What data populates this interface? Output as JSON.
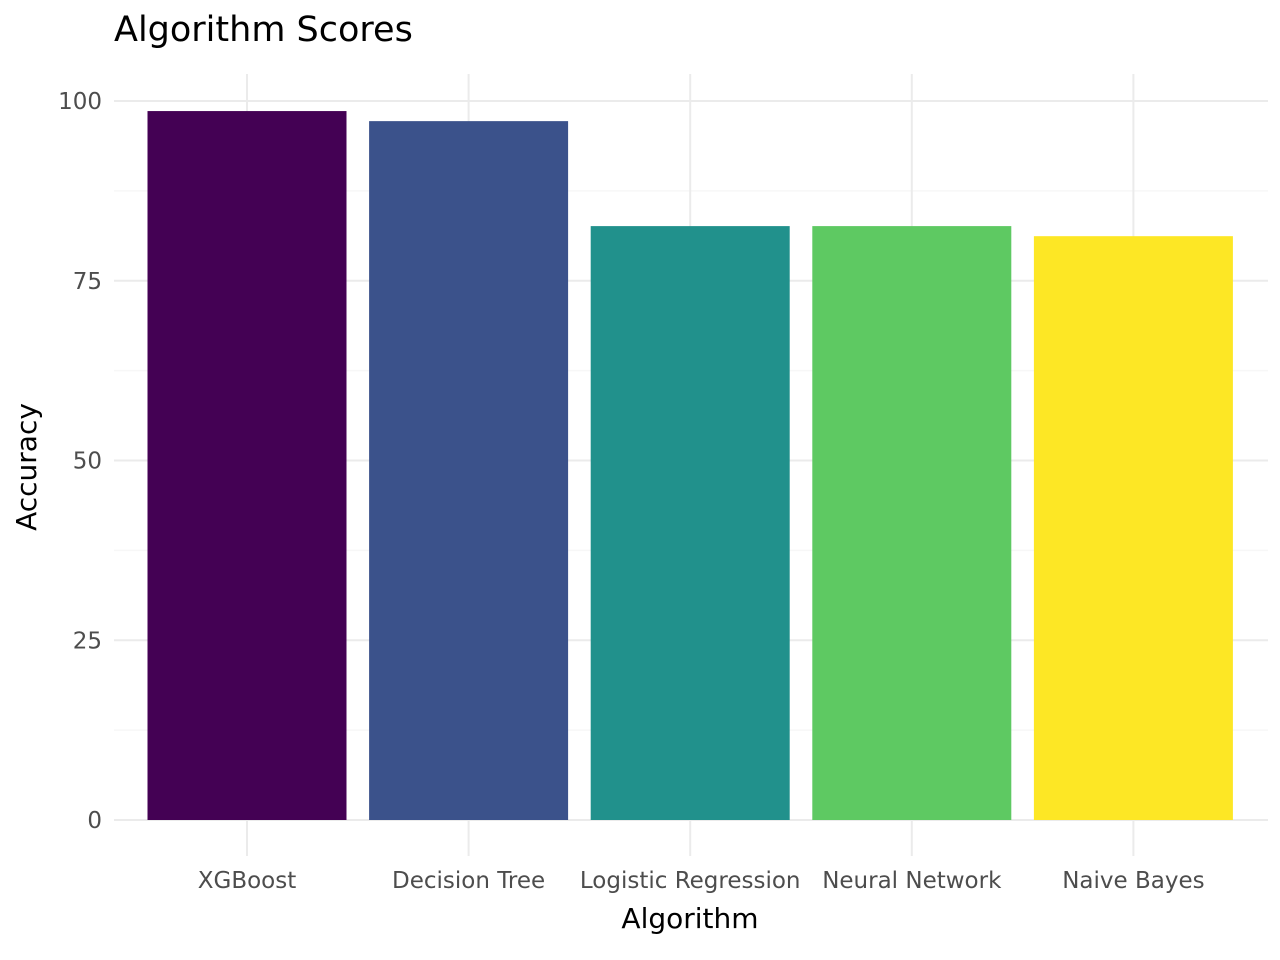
{
  "chart_data": {
    "type": "bar",
    "title": "Algorithm Scores",
    "xlabel": "Algorithm",
    "ylabel": "Accuracy",
    "categories": [
      "XGBoost",
      "Decision Tree",
      "Logistic Regression",
      "Neural Network",
      "Naive Bayes"
    ],
    "values": [
      98.6,
      97.2,
      82.6,
      82.6,
      81.2
    ],
    "colors": [
      "#440154",
      "#3b528b",
      "#21918c",
      "#5ec962",
      "#fde725"
    ],
    "ylim": [
      0,
      100
    ],
    "y_ticks": [
      0,
      25,
      50,
      75,
      100
    ],
    "y_minor_ticks": [
      12.5,
      37.5,
      62.5,
      87.5
    ],
    "grid": true,
    "legend": "none"
  }
}
